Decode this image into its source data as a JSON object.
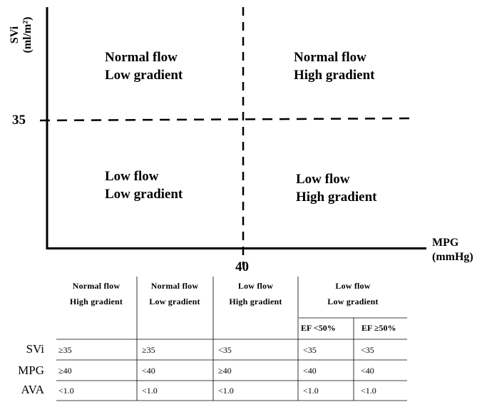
{
  "diagram": {
    "y_axis_title_line1": "SVi",
    "y_axis_title_line2": "(ml/m²)",
    "y_threshold_label": "35",
    "x_threshold_label": "40",
    "x_axis_title_line1": "MPG",
    "x_axis_title_line2": "(mmHg)",
    "quadrants": {
      "top_left": {
        "line1": "Normal flow",
        "line2": "Low gradient"
      },
      "top_right": {
        "line1": "Normal flow",
        "line2": "High gradient"
      },
      "bottom_left": {
        "line1": "Low flow",
        "line2": "Low gradient"
      },
      "bottom_right": {
        "line1": "Low flow",
        "line2": "High gradient"
      }
    }
  },
  "table": {
    "headers": [
      {
        "line1": "Normal flow",
        "line2": "High gradient"
      },
      {
        "line1": "Normal flow",
        "line2": "Low gradient"
      },
      {
        "line1": "Low flow",
        "line2": "High gradient"
      },
      {
        "line1": "Low flow",
        "line2": "Low gradient"
      }
    ],
    "subheaders": [
      "EF <50%",
      "EF ≥50%"
    ],
    "rows": [
      {
        "label": "SVi",
        "values": [
          "≥35",
          "≥35",
          "<35",
          "<35",
          "<35"
        ]
      },
      {
        "label": "MPG",
        "values": [
          "≥40",
          "<40",
          "≥40",
          "<40",
          "<40"
        ]
      },
      {
        "label": "AVA",
        "values": [
          "<1.0",
          "<1.0",
          "<1.0",
          "<1.0",
          "<1.0"
        ]
      }
    ]
  }
}
